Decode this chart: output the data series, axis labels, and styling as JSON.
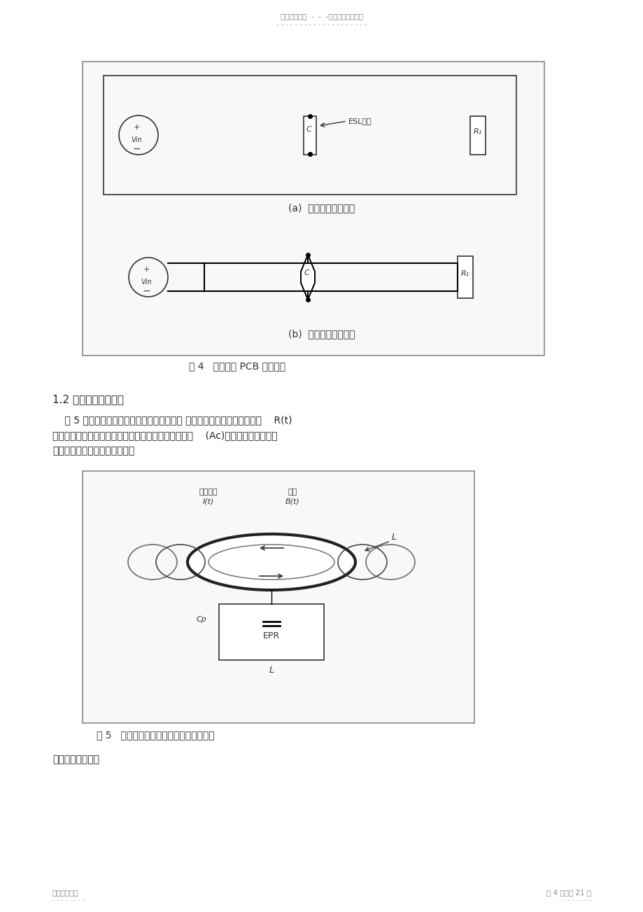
{
  "page_bg": "#ffffff",
  "header_text": "名师资料总结  -  -  -精品资料欢迎下载",
  "header_dashes": "- - - - - - - - - - - - - - - - - - - -",
  "footer_left": "名师精心整理",
  "footer_right": "第 4 页，共 21 页",
  "footer_dashes_left": "- - - - - - - -",
  "footer_dashes_right": "- - - - - - - -",
  "section_title": "1.2 电感高频滤波特性",
  "para1": "    图 5 中的电流环路类似于一匝线圈的电感。 高频交流电流所产生的电磁场    R(t)",
  "para2": "将环绕在此环路的外部和内部。如果高频电流环路面积    (Ac)很大，就会在此环路",
  "para3": "的内外部产生很大的电磁干扰。",
  "fig4_caption": "图 4   滤波电路 PCB 走线方式",
  "fig4a_caption": "(a)  效果差的走线方式",
  "fig4b_caption": "(b)  效果好的走线方式",
  "fig5_caption": "图 5   电感结构和寄生等效并联电容和电阻",
  "last_line": "电感的基本公式是"
}
